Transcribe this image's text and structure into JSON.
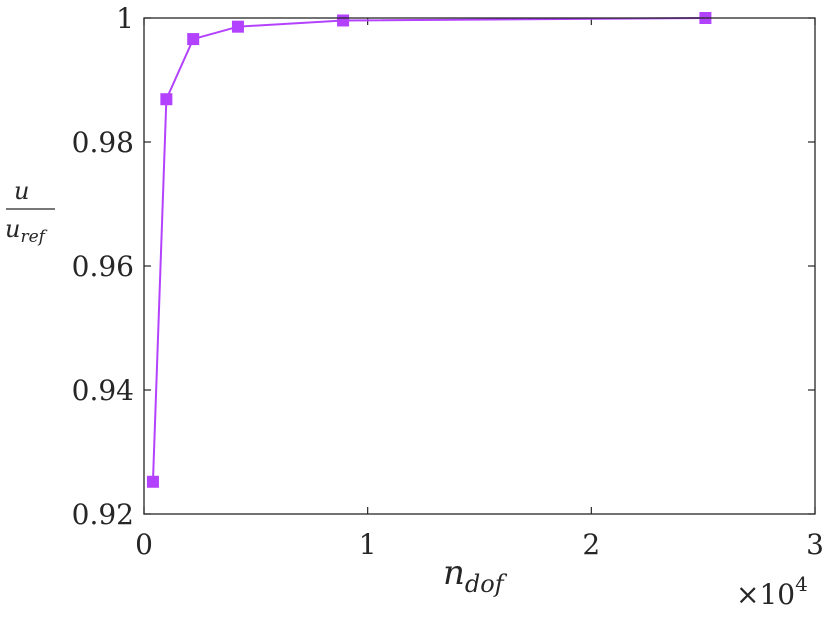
{
  "chart_data": {
    "type": "line",
    "x": [
      400,
      1000,
      2200,
      4200,
      8900,
      25100
    ],
    "series": [
      {
        "values": [
          0.9252,
          0.9869,
          0.9966,
          0.9986,
          0.9996,
          1.0
        ],
        "color": "#b342ff",
        "marker": "square"
      }
    ],
    "xlim": [
      0,
      30000
    ],
    "ylim": [
      0.92,
      1.0
    ],
    "x_scale_multiplier": "×10",
    "x_scale_exponent": "4",
    "x_ticks": [
      0,
      10000,
      20000,
      30000
    ],
    "x_tick_labels": [
      "0",
      "1",
      "2",
      "3"
    ],
    "y_ticks": [
      0.92,
      0.94,
      0.96,
      0.98,
      1.0
    ],
    "y_tick_labels": [
      "0.92",
      "0.94",
      "0.96",
      "0.98",
      "1"
    ],
    "xlabel": {
      "main": "n",
      "sub": "dof"
    },
    "ylabel": {
      "numerator": "u",
      "denominator_main": "u",
      "denominator_sub": "ref"
    },
    "grid": false,
    "box": true
  }
}
